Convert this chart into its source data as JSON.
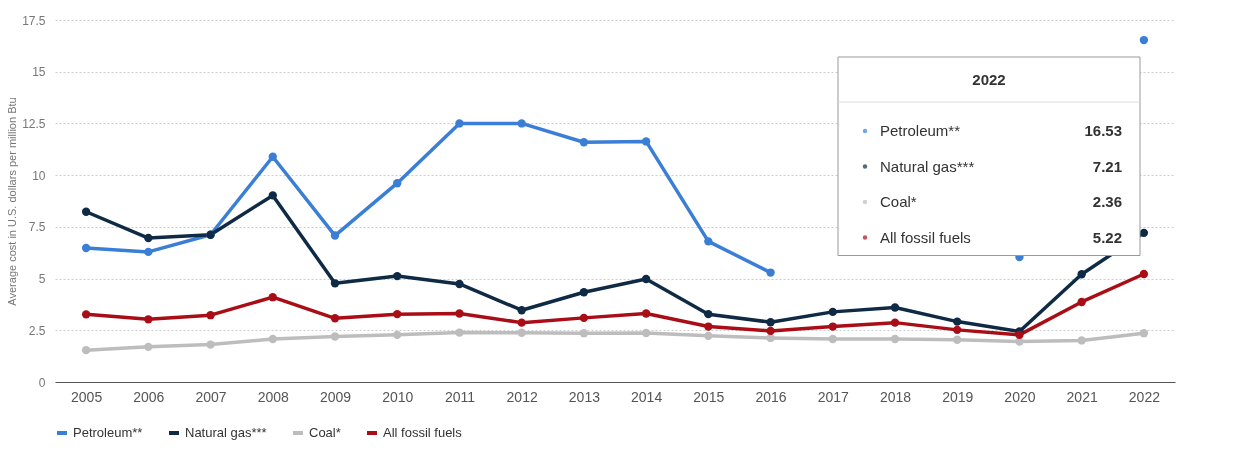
{
  "chart_data": {
    "type": "line",
    "ylabel": "Average cost in U.S. dollars per million Btu",
    "categories": [
      "2005",
      "2006",
      "2007",
      "2008",
      "2009",
      "2010",
      "2011",
      "2012",
      "2013",
      "2014",
      "2015",
      "2016",
      "2017",
      "2018",
      "2019",
      "2020",
      "2021",
      "2022"
    ],
    "series": [
      {
        "name": "Petroleum**",
        "color": "#3a7fd5",
        "values": [
          6.48,
          6.29,
          7.12,
          10.89,
          7.08,
          9.61,
          12.5,
          12.5,
          11.59,
          11.63,
          6.8,
          5.29,
          null,
          null,
          null,
          6.04,
          null,
          16.53
        ]
      },
      {
        "name": "Natural gas***",
        "color": "#0f2a44",
        "values": [
          8.23,
          6.96,
          7.12,
          9.02,
          4.77,
          5.12,
          4.74,
          3.47,
          4.34,
          4.98,
          3.28,
          2.89,
          3.39,
          3.6,
          2.92,
          2.44,
          5.21,
          7.21
        ]
      },
      {
        "name": "Coal*",
        "color": "#bdbdbd",
        "values": [
          1.54,
          1.7,
          1.81,
          2.08,
          2.2,
          2.28,
          2.39,
          2.38,
          2.36,
          2.37,
          2.23,
          2.13,
          2.08,
          2.08,
          2.04,
          1.96,
          2.01,
          2.36
        ]
      },
      {
        "name": "All fossil fuels",
        "color": "#a90e16",
        "values": [
          3.27,
          3.03,
          3.23,
          4.1,
          3.08,
          3.28,
          3.31,
          2.87,
          3.1,
          3.31,
          2.68,
          2.47,
          2.68,
          2.87,
          2.52,
          2.28,
          3.87,
          5.22
        ]
      }
    ],
    "annotations": [
      "2022",
      "16.53",
      "7.21",
      "2.36",
      "5.22"
    ],
    "ylim": [
      0,
      17.5
    ],
    "yticks": [
      0,
      2.5,
      5,
      7.5,
      10,
      12.5,
      15,
      17.5
    ],
    "grid": "y",
    "legend": "bottom",
    "marker": "circle",
    "line_style": "solid"
  }
}
